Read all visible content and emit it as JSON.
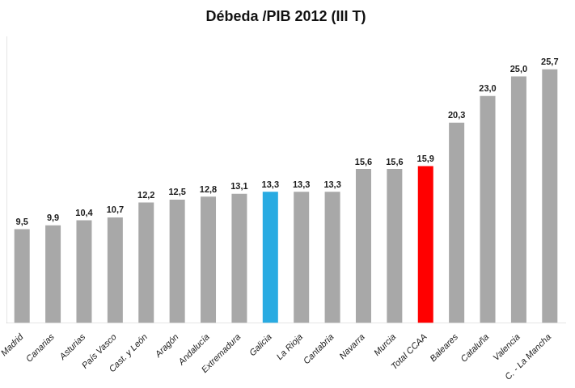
{
  "chart_data": {
    "type": "bar",
    "title": "Débeda /PIB 2012 (III T)",
    "categories": [
      "Madrid",
      "Canarias",
      "Asturias",
      "País Vasco",
      "Cast. y León",
      "Aragón",
      "Andalucía",
      "Extremadura",
      "Galicia",
      "La Rioja",
      "Cantabria",
      "Navarra",
      "Murcia",
      "Total CCAA",
      "Baleares",
      "Cataluña",
      "Valencia",
      "C. - La Mancha"
    ],
    "values": [
      9.5,
      9.9,
      10.4,
      10.7,
      12.2,
      12.5,
      12.8,
      13.1,
      13.3,
      13.3,
      13.3,
      15.6,
      15.6,
      15.9,
      20.3,
      23.0,
      25.0,
      25.7
    ],
    "value_labels": [
      "9,5",
      "9,9",
      "10,4",
      "10,7",
      "12,2",
      "12,5",
      "12,8",
      "13,1",
      "13,3",
      "13,3",
      "13,3",
      "15,6",
      "15,6",
      "15,9",
      "20,3",
      "23,0",
      "25,0",
      "25,7"
    ],
    "colors": [
      "#a8a8a8",
      "#a8a8a8",
      "#a8a8a8",
      "#a8a8a8",
      "#a8a8a8",
      "#a8a8a8",
      "#a8a8a8",
      "#a8a8a8",
      "#29abe2",
      "#a8a8a8",
      "#a8a8a8",
      "#a8a8a8",
      "#a8a8a8",
      "#ff0000",
      "#a8a8a8",
      "#a8a8a8",
      "#a8a8a8",
      "#a8a8a8"
    ],
    "ylim": [
      0,
      29
    ],
    "grid": false,
    "data_labels": true,
    "tick_labels": "x"
  }
}
